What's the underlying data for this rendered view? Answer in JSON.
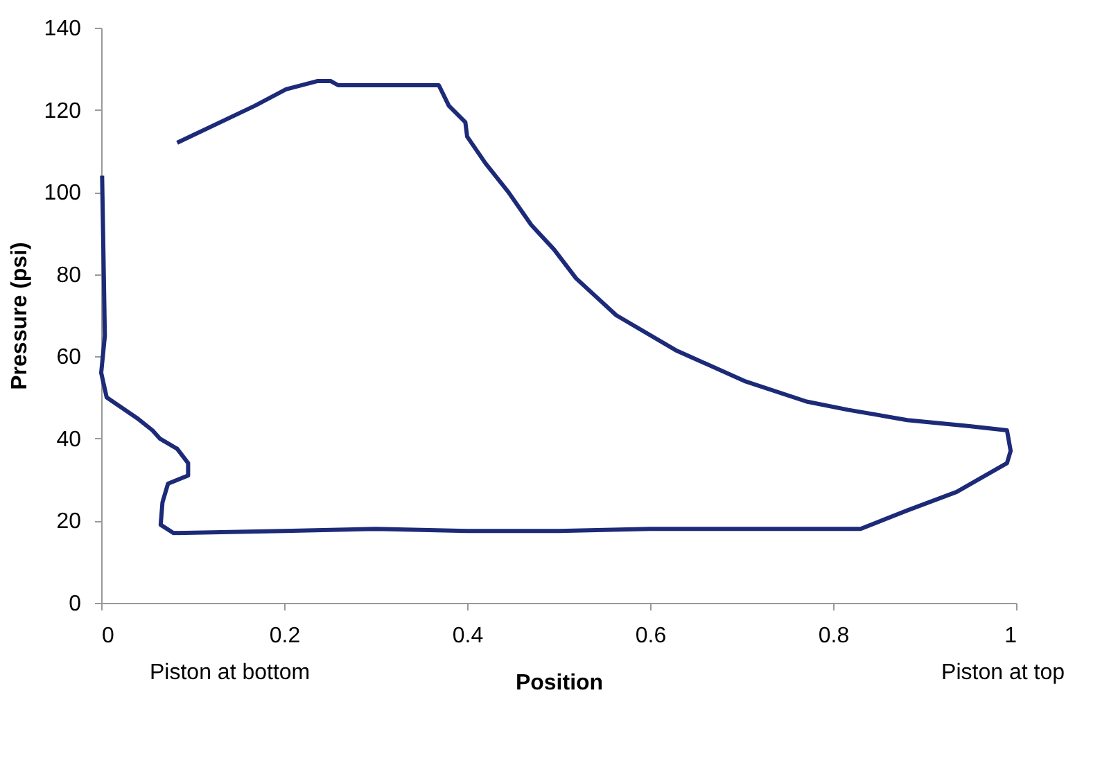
{
  "chart_data": {
    "type": "line",
    "xlabel": "Position",
    "ylabel": "Pressure (psi)",
    "xlim": [
      0,
      1
    ],
    "xticks": [
      0,
      0.2,
      0.4,
      0.6,
      0.8,
      1
    ],
    "ylim": [
      0,
      140
    ],
    "yticks": [
      0,
      20,
      40,
      60,
      80,
      100,
      120,
      140
    ],
    "grid": false,
    "marker": "none",
    "line_style": "solid",
    "annotations": [
      "Piston at bottom",
      "Piston at top"
    ],
    "series": [
      {
        "color": "#1c2a78",
        "x": [
          0.083,
          0.168,
          0.202,
          0.236,
          0.251,
          0.259,
          0.369,
          0.38,
          0.398,
          0.4,
          0.42,
          0.445,
          0.47,
          0.495,
          0.519,
          0.563,
          0.628,
          0.703,
          0.771,
          0.816,
          0.881,
          0.949,
          0.99,
          0.994,
          0.99,
          0.935,
          0.881,
          0.83,
          0.7,
          0.6,
          0.5,
          0.4,
          0.3,
          0.2,
          0.079,
          0.065,
          0.067,
          0.073,
          0.095,
          0.095,
          0.083,
          0.064,
          0.056,
          0.039,
          0.006,
          0.0,
          0.004,
          0.001
        ],
        "values": [
          112,
          121,
          125,
          127,
          127,
          126,
          126,
          121,
          117,
          113.5,
          107,
          100,
          92,
          86,
          79,
          70,
          61.5,
          54,
          49,
          47,
          44.5,
          43,
          42,
          37,
          34,
          27,
          22.5,
          18,
          18,
          18,
          17.5,
          17.5,
          18,
          17.5,
          17,
          19,
          24.5,
          29,
          31,
          34,
          37.5,
          40,
          42,
          45,
          50,
          56,
          65,
          104
        ]
      }
    ]
  }
}
